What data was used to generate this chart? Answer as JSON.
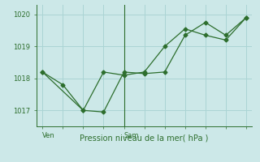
{
  "title": "",
  "xlabel": "Pression niveau de la mer( hPa )",
  "ylabel": "",
  "background_color": "#cce8e8",
  "line_color": "#2d6e2d",
  "grid_color": "#aad4d4",
  "axis_color": "#2d6e2d",
  "text_color": "#2d6e2d",
  "ylim": [
    1016.5,
    1020.3
  ],
  "yticks": [
    1017,
    1018,
    1019,
    1020
  ],
  "series1_x": [
    0,
    1,
    2,
    3,
    4,
    5,
    6,
    7,
    8,
    9,
    10
  ],
  "series1_y": [
    1018.2,
    1017.8,
    1017.0,
    1016.95,
    1018.2,
    1018.15,
    1018.2,
    1019.35,
    1019.75,
    1019.35,
    1019.9
  ],
  "series2_x": [
    0,
    2,
    3,
    4,
    5,
    6,
    7,
    8,
    9,
    10
  ],
  "series2_y": [
    1018.2,
    1017.0,
    1018.2,
    1018.1,
    1018.2,
    1019.0,
    1019.55,
    1019.35,
    1019.2,
    1019.9
  ],
  "day_labels": [
    "Ven",
    "Sam"
  ],
  "day_positions": [
    0,
    4
  ],
  "sam_vline_x": 4,
  "xlim": [
    -0.3,
    10.3
  ]
}
